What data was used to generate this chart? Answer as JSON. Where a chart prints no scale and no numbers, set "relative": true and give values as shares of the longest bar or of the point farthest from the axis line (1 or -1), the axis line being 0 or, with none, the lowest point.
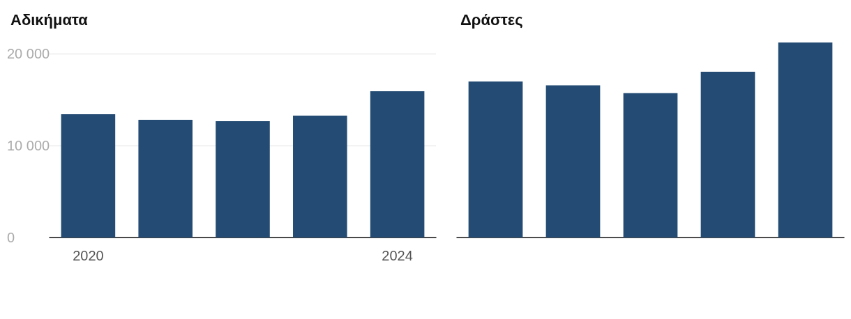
{
  "chart_data": [
    {
      "type": "bar",
      "title": "Αδικήματα",
      "categories": [
        "2020",
        null,
        null,
        null,
        "2024"
      ],
      "values": [
        13400,
        12800,
        12650,
        13250,
        15900
      ],
      "color": "#234b73",
      "ylim": [
        0,
        20000
      ],
      "yticks": [
        {
          "value": 0,
          "label": "0"
        },
        {
          "value": 10000,
          "label": "10 000"
        },
        {
          "value": 20000,
          "label": "20 000"
        }
      ],
      "grid": "y"
    },
    {
      "type": "bar",
      "title": "Δράστες",
      "categories": [
        null,
        null,
        null,
        null,
        null
      ],
      "values": [
        0.8,
        0.78,
        0.74,
        0.85,
        1
      ],
      "color": "#234b73",
      "relative": true
    }
  ]
}
